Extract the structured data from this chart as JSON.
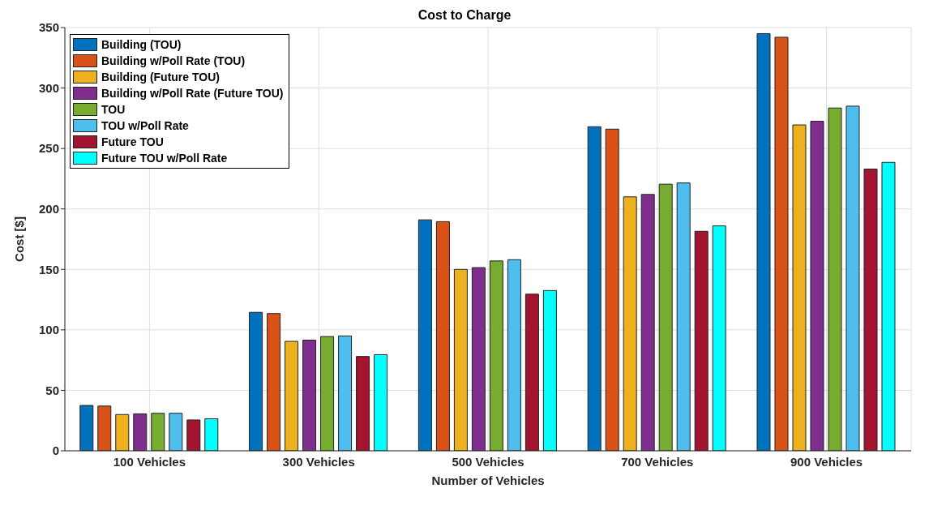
{
  "chart_data": {
    "type": "bar",
    "title": "Cost to Charge",
    "xlabel": "Number of Vehicles",
    "ylabel": "Cost [$]",
    "categories": [
      "100 Vehicles",
      "300 Vehicles",
      "500 Vehicles",
      "700 Vehicles",
      "900 Vehicles"
    ],
    "series": [
      {
        "name": "Building (TOU)",
        "color": "#0072bd",
        "values": [
          37.5,
          114.5,
          191,
          268,
          345
        ]
      },
      {
        "name": "Building w/Poll Rate (TOU)",
        "color": "#d95319",
        "values": [
          37,
          113.5,
          189.5,
          266,
          342
        ]
      },
      {
        "name": "Building (Future TOU)",
        "color": "#edb120",
        "values": [
          30,
          90.5,
          150,
          210,
          269.5
        ]
      },
      {
        "name": "Building w/Poll Rate (Future TOU)",
        "color": "#7e2f8e",
        "values": [
          30.5,
          91.5,
          151.5,
          212,
          272.5
        ]
      },
      {
        "name": "TOU",
        "color": "#77ac30",
        "values": [
          31,
          94.5,
          157,
          220.5,
          283.5
        ]
      },
      {
        "name": "TOU w/Poll Rate",
        "color": "#4dbeee",
        "values": [
          31,
          95,
          158,
          221.5,
          285
        ]
      },
      {
        "name": "Future TOU",
        "color": "#a2142f",
        "values": [
          25.5,
          78,
          129.5,
          181.5,
          233
        ]
      },
      {
        "name": "Future TOU w/Poll Rate",
        "color": "#00ffff",
        "values": [
          26.5,
          79.5,
          132.5,
          186,
          238.5
        ]
      }
    ],
    "ylim": [
      0,
      350
    ],
    "yticks": [
      0,
      50,
      100,
      150,
      200,
      250,
      300,
      350
    ],
    "grid": true,
    "legend": "top left"
  }
}
